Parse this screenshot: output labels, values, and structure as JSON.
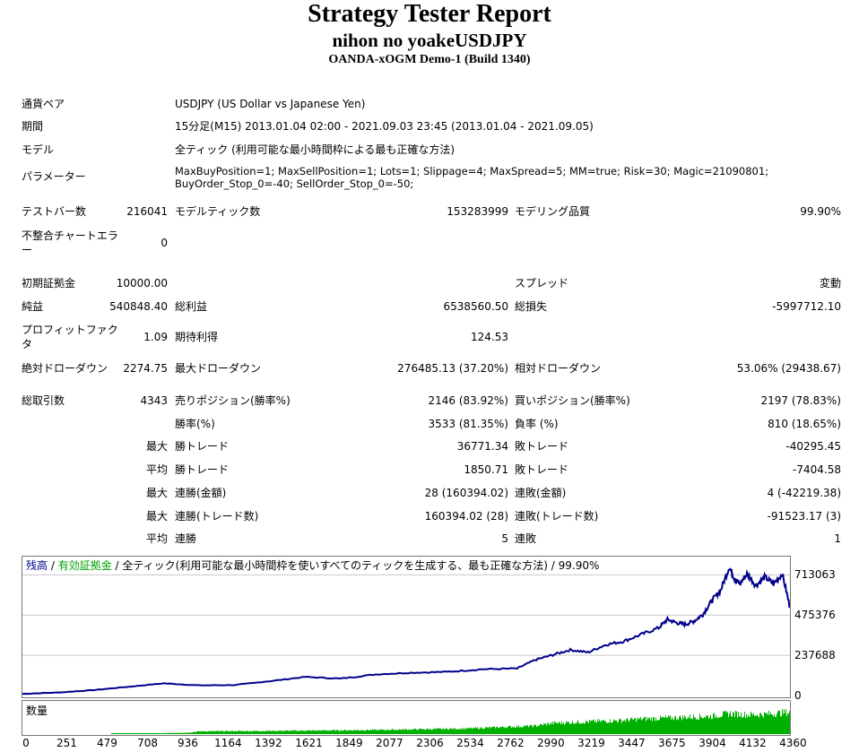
{
  "header": {
    "title": "Strategy Tester Report",
    "subtitle": "nihon no yoakeUSDJPY",
    "server": "OANDA-xOGM Demo-1 (Build 1340)"
  },
  "info": {
    "pair_label": "通貨ペア",
    "pair_value": "USDJPY (US Dollar vs Japanese Yen)",
    "period_label": "期間",
    "period_value": "15分足(M15) 2013.01.04 02:00 - 2021.09.03 23:45 (2013.01.04 - 2021.09.05)",
    "model_label": "モデル",
    "model_value": "全ティック (利用可能な最小時間枠による最も正確な方法)",
    "params_label": "パラメーター",
    "params_value": "MaxBuyPosition=1; MaxSellPosition=1; Lots=1; Slippage=4; MaxSpread=5; MM=true; Risk=30; Magic=21090801; BuyOrder_Stop_0=-40; SellOrder_Stop_0=-50;"
  },
  "stats": {
    "bars_label": "テストバー数",
    "bars_value": "216041",
    "ticks_label": "モデルティック数",
    "ticks_value": "153283999",
    "quality_label": "モデリング品質",
    "quality_value": "99.90%",
    "mismatch_label": "不整合チャートエラー",
    "mismatch_value": "0",
    "deposit_label": "初期証拠金",
    "deposit_value": "10000.00",
    "spread_label": "スプレッド",
    "spread_value": "変動",
    "net_label": "純益",
    "net_value": "540848.40",
    "gross_profit_label": "総利益",
    "gross_profit_value": "6538560.50",
    "gross_loss_label": "総損失",
    "gross_loss_value": "-5997712.10",
    "pf_label": "プロフィットファクタ",
    "pf_value": "1.09",
    "expected_label": "期待利得",
    "expected_value": "124.53",
    "abs_dd_label": "絶対ドローダウン",
    "abs_dd_value": "2274.75",
    "max_dd_label": "最大ドローダウン",
    "max_dd_value": "276485.13 (37.20%)",
    "rel_dd_label": "相対ドローダウン",
    "rel_dd_value": "53.06% (29438.67)",
    "trades_label": "総取引数",
    "trades_value": "4343",
    "short_label": "売りポジション(勝率%)",
    "short_value": "2146 (83.92%)",
    "long_label": "買いポジション(勝率%)",
    "long_value": "2197 (78.83%)",
    "win_label": "勝率(%)",
    "win_value": "3533 (81.35%)",
    "loss_label": "負率 (%)",
    "loss_value": "810 (18.65%)",
    "max_prefix": "最大",
    "avg_prefix": "平均",
    "lg_win_label": "勝トレード",
    "lg_win_value": "36771.34",
    "lg_loss_label": "敗トレード",
    "lg_loss_value": "-40295.45",
    "avg_win_label": "勝トレード",
    "avg_win_value": "1850.71",
    "avg_loss_label": "敗トレード",
    "avg_loss_value": "-7404.58",
    "cw_money_label": "連勝(金額)",
    "cw_money_value": "28 (160394.02)",
    "cl_money_label": "連敗(金額)",
    "cl_money_value": "4 (-42219.38)",
    "cw_count_label": "連勝(トレード数)",
    "cw_count_value": "160394.02 (28)",
    "cl_count_label": "連敗(トレード数)",
    "cl_count_value": "-91523.17 (3)",
    "avg_cw_label": "連勝",
    "avg_cw_value": "5",
    "avg_cl_label": "連敗",
    "avg_cl_value": "1"
  },
  "chart_data": {
    "type": "line",
    "legend": {
      "balance": "残高",
      "sep1": " / ",
      "equity": "有効証拠金",
      "sep2": " / ",
      "rest": "全ティック(利用可能な最小時間枠を使いすべてのティックを生成する、最も正確な方法) / 99.90%"
    },
    "volume_label": "数量",
    "colors": {
      "balance": "#00008b",
      "equity": "#00a000",
      "volume": "#00b000",
      "grid": "#c8c8c8"
    },
    "y_ticks": [
      "713063",
      "475376",
      "237688",
      "0"
    ],
    "y_tick_values": [
      713063,
      475376,
      237688,
      0
    ],
    "ylim": [
      0,
      800000
    ],
    "x_ticks": [
      "0",
      "251",
      "479",
      "708",
      "936",
      "1164",
      "1392",
      "1621",
      "1849",
      "2077",
      "2306",
      "2534",
      "2762",
      "2990",
      "3219",
      "3447",
      "3675",
      "3904",
      "4132",
      "4360"
    ],
    "x_tick_values": [
      0,
      251,
      479,
      708,
      936,
      1164,
      1392,
      1621,
      1849,
      2077,
      2306,
      2534,
      2762,
      2990,
      3219,
      3447,
      3675,
      3904,
      4132,
      4360
    ],
    "xlim": [
      0,
      4343
    ],
    "series": [
      {
        "name": "残高",
        "x": [
          0,
          200,
          400,
          600,
          800,
          1000,
          1200,
          1400,
          1600,
          1800,
          2000,
          2200,
          2400,
          2600,
          2800,
          2900,
          3000,
          3100,
          3200,
          3300,
          3400,
          3500,
          3600,
          3650,
          3700,
          3750,
          3800,
          3850,
          3900,
          3950,
          4000,
          4030,
          4060,
          4100,
          4150,
          4200,
          4250,
          4300,
          4343
        ],
        "y": [
          10000,
          18000,
          32000,
          52000,
          72000,
          60000,
          62000,
          85000,
          110000,
          100000,
          125000,
          135000,
          140000,
          155000,
          160000,
          210000,
          240000,
          270000,
          255000,
          300000,
          320000,
          360000,
          400000,
          450000,
          430000,
          420000,
          440000,
          480000,
          560000,
          620000,
          760000,
          690000,
          660000,
          720000,
          650000,
          700000,
          660000,
          720000,
          520000
        ]
      }
    ],
    "volume": {
      "x": [
        0,
        500,
        936,
        1000,
        1500,
        2000,
        2500,
        2900,
        3000,
        3200,
        3400,
        3500,
        3700,
        3900,
        4000,
        4100,
        4200,
        4343
      ],
      "y": [
        0,
        0,
        0.05,
        0.1,
        0.12,
        0.15,
        0.2,
        0.3,
        0.4,
        0.45,
        0.5,
        0.55,
        0.6,
        0.65,
        0.75,
        0.7,
        0.72,
        0.8
      ]
    }
  }
}
